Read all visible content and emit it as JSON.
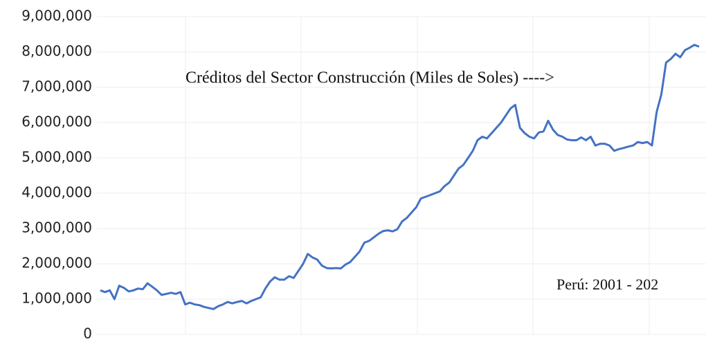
{
  "chart_data": {
    "type": "line",
    "annotations": [
      "Créditos del Sector Construcción (Miles de Soles) ---->",
      "Perú: 2001 - 202"
    ],
    "categories": [
      null,
      null,
      null,
      null,
      null,
      null,
      null,
      null,
      null,
      null,
      null,
      null,
      null,
      null,
      null,
      null,
      null,
      null,
      null,
      null,
      null,
      null,
      null,
      null,
      null,
      null,
      null,
      null,
      null,
      null,
      null,
      null,
      null,
      null,
      null,
      null,
      null,
      null,
      null,
      null,
      null,
      null,
      null,
      null,
      null,
      null,
      null,
      null,
      null,
      null,
      null,
      null,
      null,
      null,
      null,
      null,
      null,
      null,
      null,
      null,
      null,
      null,
      null,
      null,
      null,
      null,
      null,
      null,
      null,
      null,
      null,
      null,
      null,
      null,
      null,
      null,
      null,
      null,
      null,
      null,
      null,
      null,
      null,
      null,
      null,
      null,
      null,
      null,
      null,
      null,
      null,
      null,
      null,
      null,
      null,
      null,
      null,
      null,
      null,
      null,
      null,
      null,
      null,
      null,
      null,
      null,
      null,
      null,
      null,
      null,
      null,
      null,
      null,
      null,
      null,
      null,
      null,
      null,
      null,
      null,
      null,
      null,
      null,
      null,
      null,
      null,
      null,
      null
    ],
    "series": [
      {
        "color": "#4472c4",
        "values": [
          1250000,
          1200000,
          1250000,
          1000000,
          1380000,
          1320000,
          1220000,
          1250000,
          1300000,
          1280000,
          1450000,
          1350000,
          1250000,
          1120000,
          1150000,
          1180000,
          1150000,
          1200000,
          850000,
          900000,
          850000,
          830000,
          780000,
          750000,
          720000,
          800000,
          850000,
          920000,
          880000,
          920000,
          950000,
          880000,
          950000,
          1000000,
          1050000,
          1300000,
          1500000,
          1620000,
          1550000,
          1550000,
          1650000,
          1600000,
          1800000,
          2000000,
          2280000,
          2180000,
          2120000,
          1950000,
          1880000,
          1870000,
          1880000,
          1870000,
          1980000,
          2050000,
          2200000,
          2350000,
          2600000,
          2650000,
          2750000,
          2850000,
          2930000,
          2950000,
          2920000,
          2980000,
          3200000,
          3300000,
          3450000,
          3600000,
          3850000,
          3900000,
          3950000,
          4000000,
          4050000,
          4200000,
          4300000,
          4500000,
          4700000,
          4800000,
          5000000,
          5200000,
          5500000,
          5600000,
          5550000,
          5700000,
          5850000,
          6000000,
          6200000,
          6400000,
          6500000,
          5850000,
          5700000,
          5600000,
          5550000,
          5720000,
          5750000,
          6050000,
          5800000,
          5650000,
          5600000,
          5520000,
          5500000,
          5500000,
          5580000,
          5500000,
          5600000,
          5350000,
          5400000,
          5400000,
          5350000,
          5200000,
          5250000,
          5280000,
          5320000,
          5350000,
          5450000,
          5420000,
          5450000,
          5350000,
          6300000,
          6800000,
          7700000,
          7800000,
          7950000,
          7850000,
          8050000,
          8120000,
          8200000,
          8150000
        ]
      }
    ],
    "ylim": [
      0,
      9000000
    ],
    "yticks": [
      0,
      {
        "value": 1000000,
        "label": "1,000,000"
      },
      {
        "value": 2000000,
        "label": "2,000,000"
      },
      {
        "value": 3000000,
        "label": "3,000,000"
      },
      {
        "value": 4000000,
        "label": "4,000,000"
      },
      {
        "value": 5000000,
        "label": "5,000,000"
      },
      {
        "value": 6000000,
        "label": "6,000,000"
      },
      {
        "value": 7000000,
        "label": "7,000,000"
      },
      {
        "value": 8000000,
        "label": "8,000,000"
      },
      {
        "value": 9000000,
        "label": "9,000,000"
      }
    ],
    "grid": true
  }
}
